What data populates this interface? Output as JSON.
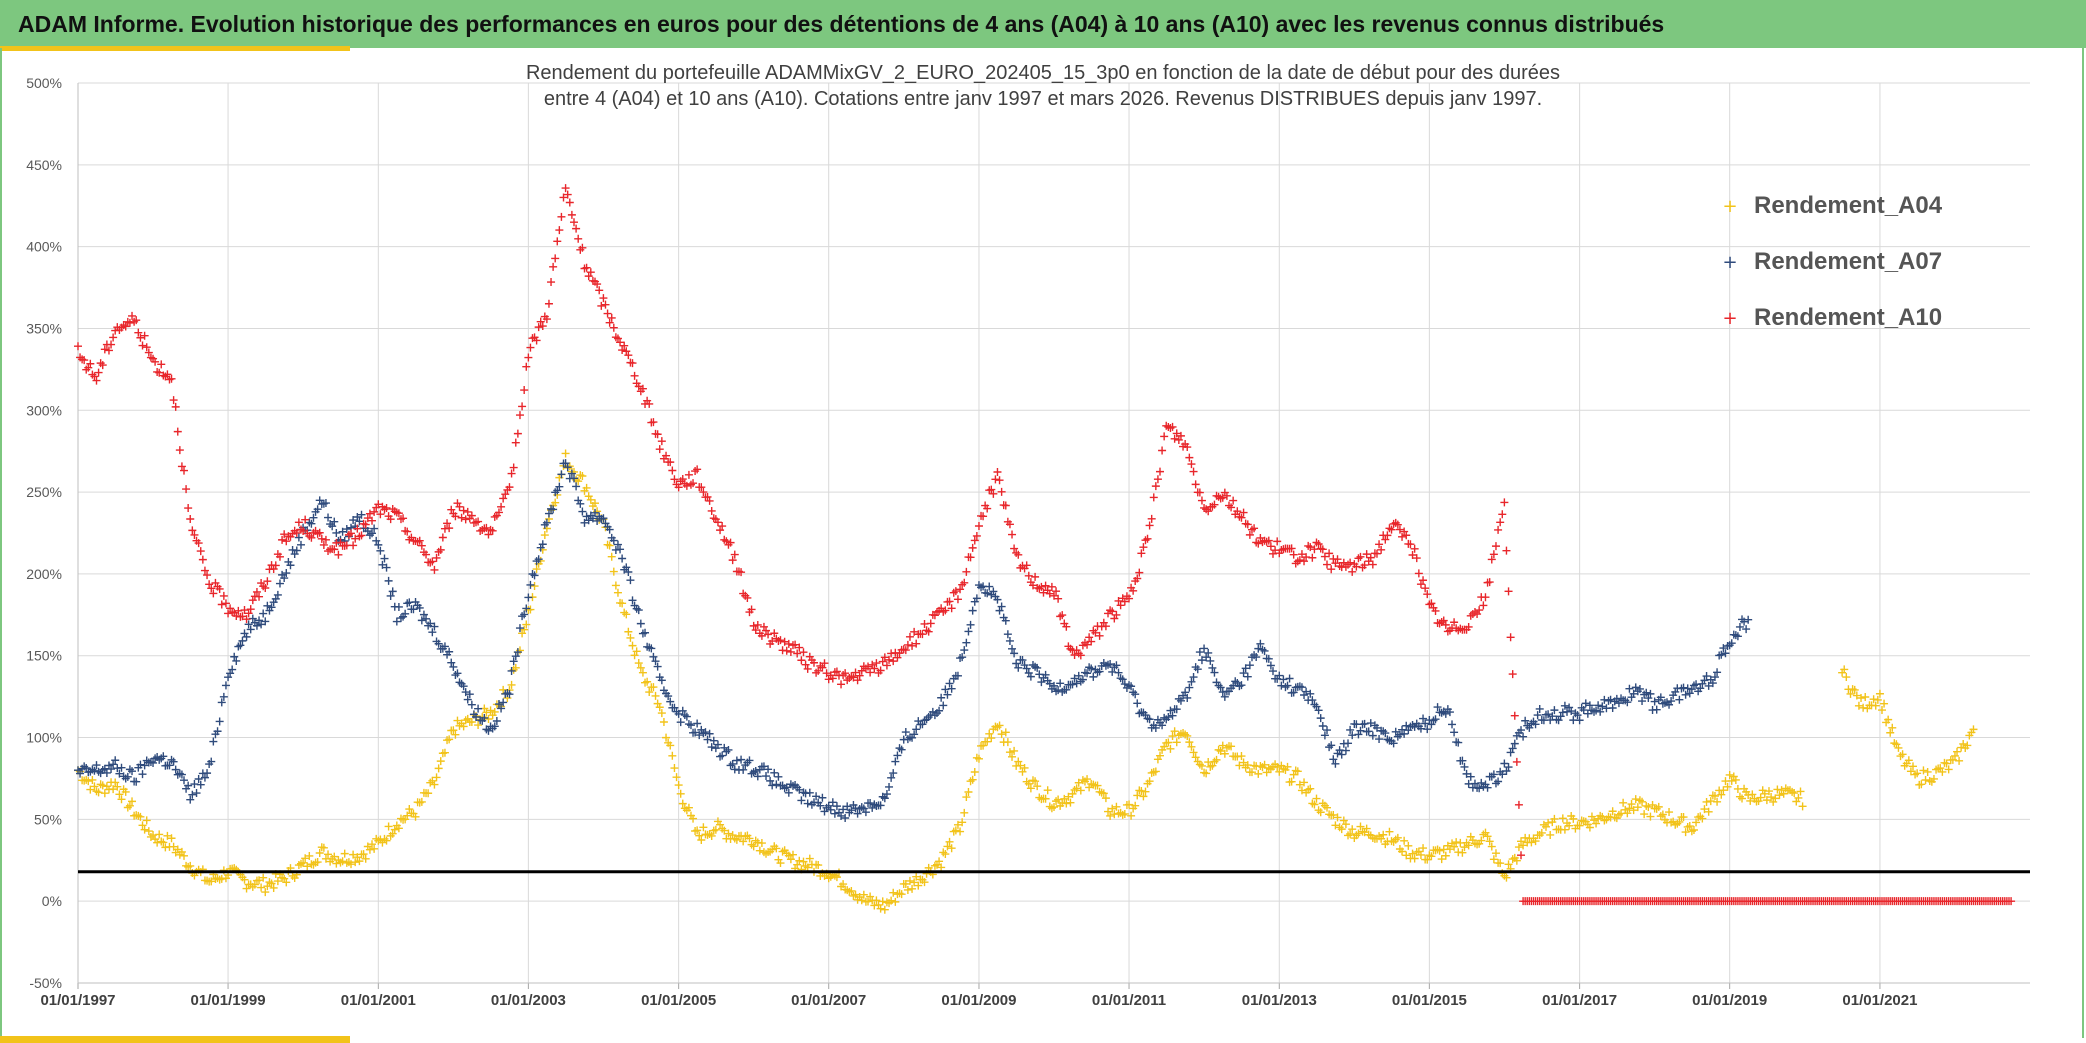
{
  "header": {
    "title": "ADAM Informe. Evolution historique des performances en euros pour des détentions de 4 ans (A04) à 10 ans (A10) avec les revenus connus distribués"
  },
  "chart_data": {
    "type": "scatter",
    "title": "Rendement du portefeuille ADAMMixGV_2_EURO_202405_15_3p0  en fonction de la date de début pour des durées",
    "subtitle": "entre 4 (A04) et 10 ans (A10). Cotations entre janv 1997 et mars 2026. Revenus DISTRIBUES depuis janv 1997.",
    "xlabel": "",
    "ylabel": "",
    "x_ticks": [
      "01/01/1997",
      "01/01/1999",
      "01/01/2001",
      "01/01/2003",
      "01/01/2005",
      "01/01/2007",
      "01/01/2009",
      "01/01/2011",
      "01/01/2013",
      "01/01/2015",
      "01/01/2017",
      "01/01/2019",
      "01/01/2021"
    ],
    "y_ticks": [
      "-50%",
      "0%",
      "50%",
      "100%",
      "150%",
      "200%",
      "250%",
      "300%",
      "350%",
      "400%",
      "450%",
      "500%"
    ],
    "xlim": [
      "01/01/1997",
      "01/01/2023"
    ],
    "ylim": [
      -0.5,
      5.0
    ],
    "y_format": "percent",
    "grid": true,
    "legend_position": "top-right",
    "reference_line": 0.18,
    "reference_line_color": "#000000",
    "series": [
      {
        "name": "Rendement_A04",
        "color": "#f2c31a",
        "x": [
          "1997-01-01",
          "1997-04-01",
          "1997-07-01",
          "1997-10-01",
          "1998-01-01",
          "1998-04-01",
          "1998-07-01",
          "1998-10-01",
          "1999-01-01",
          "1999-04-01",
          "1999-07-01",
          "1999-10-01",
          "2000-01-01",
          "2000-04-01",
          "2000-07-01",
          "2000-10-01",
          "2001-01-01",
          "2001-04-01",
          "2001-07-01",
          "2001-10-01",
          "2002-01-01",
          "2002-04-01",
          "2002-07-01",
          "2002-10-01",
          "2003-01-01",
          "2003-04-01",
          "2003-07-01",
          "2003-10-01",
          "2004-01-01",
          "2004-04-01",
          "2004-07-01",
          "2004-10-01",
          "2005-01-01",
          "2005-04-01",
          "2005-07-01",
          "2005-10-01",
          "2006-01-01",
          "2006-04-01",
          "2006-07-01",
          "2006-10-01",
          "2007-01-01",
          "2007-04-01",
          "2007-07-01",
          "2007-10-01",
          "2008-01-01",
          "2008-04-01",
          "2008-07-01",
          "2008-10-01",
          "2009-01-01",
          "2009-04-01",
          "2009-07-01",
          "2009-10-01",
          "2010-01-01",
          "2010-04-01",
          "2010-07-01",
          "2010-10-01",
          "2011-01-01",
          "2011-04-01",
          "2011-07-01",
          "2011-10-01",
          "2012-01-01",
          "2012-04-01",
          "2012-07-01",
          "2012-10-01",
          "2013-01-01",
          "2013-04-01",
          "2013-07-01",
          "2013-10-01",
          "2014-01-01",
          "2014-04-01",
          "2014-07-01",
          "2014-10-01",
          "2015-01-01",
          "2015-04-01",
          "2015-07-01",
          "2015-10-01",
          "2016-01-01",
          "2016-04-01",
          "2016-07-01",
          "2016-10-01",
          "2017-01-01",
          "2017-04-01",
          "2017-07-01",
          "2017-10-01",
          "2018-01-01",
          "2018-04-01",
          "2018-07-01",
          "2018-10-01",
          "2019-01-01",
          "2019-04-01",
          "2019-07-01",
          "2019-10-01",
          "2020-01-01",
          "2020-04-01",
          "2020-07-01",
          "2020-10-01",
          "2021-01-01",
          "2021-04-01",
          "2021-07-01",
          "2021-10-01",
          "2022-01-01",
          "2022-04-01"
        ],
        "values": [
          0.8,
          0.68,
          0.72,
          0.55,
          0.4,
          0.35,
          0.22,
          0.12,
          0.18,
          0.12,
          0.1,
          0.14,
          0.22,
          0.3,
          0.26,
          0.28,
          0.35,
          0.48,
          0.55,
          0.72,
          1.05,
          1.1,
          1.15,
          1.3,
          1.75,
          2.3,
          2.7,
          2.55,
          2.3,
          1.8,
          1.4,
          1.2,
          0.7,
          0.4,
          0.45,
          0.4,
          0.38,
          0.3,
          0.25,
          0.22,
          0.18,
          0.1,
          0.0,
          -0.03,
          0.08,
          0.15,
          0.25,
          0.45,
          0.9,
          1.1,
          0.85,
          0.7,
          0.6,
          0.65,
          0.75,
          0.55,
          0.55,
          0.7,
          0.95,
          1.05,
          0.8,
          0.95,
          0.85,
          0.8,
          0.8,
          0.75,
          0.6,
          0.5,
          0.42,
          0.42,
          0.38,
          0.3,
          0.28,
          0.3,
          0.35,
          0.4,
          0.15,
          0.35,
          0.42,
          0.48,
          0.48,
          0.5,
          0.55,
          0.58,
          0.55,
          0.5,
          0.45,
          0.6,
          0.75,
          0.62,
          0.65,
          0.65,
          0.62,
          null,
          1.4,
          1.2,
          1.25,
          0.9,
          0.75,
          0.78,
          0.85,
          1.05
        ]
      },
      {
        "name": "Rendement_A07",
        "color": "#2f4b7c",
        "x": [
          "1997-01-01",
          "1997-04-01",
          "1997-07-01",
          "1997-10-01",
          "1998-01-01",
          "1998-04-01",
          "1998-07-01",
          "1998-10-01",
          "1999-01-01",
          "1999-04-01",
          "1999-07-01",
          "1999-10-01",
          "2000-01-01",
          "2000-04-01",
          "2000-07-01",
          "2000-10-01",
          "2001-01-01",
          "2001-04-01",
          "2001-07-01",
          "2001-10-01",
          "2002-01-01",
          "2002-04-01",
          "2002-07-01",
          "2002-10-01",
          "2003-01-01",
          "2003-04-01",
          "2003-07-01",
          "2003-10-01",
          "2004-01-01",
          "2004-04-01",
          "2004-07-01",
          "2004-10-01",
          "2005-01-01",
          "2005-04-01",
          "2005-07-01",
          "2005-10-01",
          "2006-01-01",
          "2006-04-01",
          "2006-07-01",
          "2006-10-01",
          "2007-01-01",
          "2007-04-01",
          "2007-07-01",
          "2007-10-01",
          "2008-01-01",
          "2008-04-01",
          "2008-07-01",
          "2008-10-01",
          "2009-01-01",
          "2009-04-01",
          "2009-07-01",
          "2009-10-01",
          "2010-01-01",
          "2010-04-01",
          "2010-07-01",
          "2010-10-01",
          "2011-01-01",
          "2011-04-01",
          "2011-07-01",
          "2011-10-01",
          "2012-01-01",
          "2012-04-01",
          "2012-07-01",
          "2012-10-01",
          "2013-01-01",
          "2013-04-01",
          "2013-07-01",
          "2013-10-01",
          "2014-01-01",
          "2014-04-01",
          "2014-07-01",
          "2014-10-01",
          "2015-01-01",
          "2015-04-01",
          "2015-07-01",
          "2015-10-01",
          "2016-01-01",
          "2016-04-01",
          "2016-07-01",
          "2016-10-01",
          "2017-01-01",
          "2017-04-01",
          "2017-07-01",
          "2017-10-01",
          "2018-01-01",
          "2018-04-01",
          "2018-07-01",
          "2018-10-01",
          "2019-01-01",
          "2019-04-01"
        ],
        "values": [
          0.78,
          0.8,
          0.82,
          0.75,
          0.88,
          0.85,
          0.65,
          0.8,
          1.4,
          1.65,
          1.75,
          2.0,
          2.25,
          2.45,
          2.2,
          2.35,
          2.2,
          1.75,
          1.8,
          1.65,
          1.45,
          1.2,
          1.05,
          1.3,
          1.9,
          2.3,
          2.7,
          2.35,
          2.35,
          2.1,
          1.7,
          1.35,
          1.15,
          1.05,
          0.95,
          0.85,
          0.82,
          0.75,
          0.68,
          0.62,
          0.58,
          0.55,
          0.58,
          0.62,
          0.98,
          1.1,
          1.2,
          1.45,
          1.95,
          1.85,
          1.45,
          1.4,
          1.3,
          1.35,
          1.4,
          1.45,
          1.3,
          1.1,
          1.1,
          1.25,
          1.55,
          1.25,
          1.35,
          1.55,
          1.35,
          1.3,
          1.2,
          0.85,
          1.05,
          1.05,
          1.0,
          1.05,
          1.1,
          1.2,
          0.75,
          0.7,
          0.8,
          1.05,
          1.15,
          1.15,
          1.15,
          1.2,
          1.2,
          1.3,
          1.2,
          1.25,
          1.3,
          1.35,
          1.6,
          1.72
        ]
      },
      {
        "name": "Rendement_A10",
        "color": "#e8262b",
        "x": [
          "1997-01-01",
          "1997-04-01",
          "1997-07-01",
          "1997-10-01",
          "1998-01-01",
          "1998-04-01",
          "1998-07-01",
          "1998-10-01",
          "1999-01-01",
          "1999-04-01",
          "1999-07-01",
          "1999-10-01",
          "2000-01-01",
          "2000-04-01",
          "2000-07-01",
          "2000-10-01",
          "2001-01-01",
          "2001-04-01",
          "2001-07-01",
          "2001-10-01",
          "2002-01-01",
          "2002-04-01",
          "2002-07-01",
          "2002-10-01",
          "2003-01-01",
          "2003-04-01",
          "2003-07-01",
          "2003-10-01",
          "2004-01-01",
          "2004-04-01",
          "2004-07-01",
          "2004-10-01",
          "2005-01-01",
          "2005-04-01",
          "2005-07-01",
          "2005-10-01",
          "2006-01-01",
          "2006-04-01",
          "2006-07-01",
          "2006-10-01",
          "2007-01-01",
          "2007-04-01",
          "2007-07-01",
          "2007-10-01",
          "2008-01-01",
          "2008-04-01",
          "2008-07-01",
          "2008-10-01",
          "2009-01-01",
          "2009-04-01",
          "2009-07-01",
          "2009-10-01",
          "2010-01-01",
          "2010-04-01",
          "2010-07-01",
          "2010-10-01",
          "2011-01-01",
          "2011-04-01",
          "2011-07-01",
          "2011-10-01",
          "2012-01-01",
          "2012-04-01",
          "2012-07-01",
          "2012-10-01",
          "2013-01-01",
          "2013-04-01",
          "2013-07-01",
          "2013-10-01",
          "2014-01-01",
          "2014-04-01",
          "2014-07-01",
          "2014-10-01",
          "2015-01-01",
          "2015-04-01",
          "2015-07-01",
          "2015-10-01",
          "2016-01-01",
          "2016-04-01",
          "2016-07-01",
          "2016-10-01",
          "2017-01-01",
          "2017-04-01",
          "2017-07-01",
          "2017-10-01",
          "2018-01-01",
          "2018-04-01",
          "2018-07-01",
          "2018-10-01",
          "2019-01-01",
          "2019-04-01",
          "2019-07-01",
          "2019-10-01",
          "2020-01-01",
          "2020-04-01",
          "2020-07-01",
          "2020-10-01",
          "2021-01-01",
          "2021-04-01",
          "2021-07-01",
          "2021-10-01",
          "2022-01-01",
          "2022-04-01",
          "2022-07-01",
          "2022-10-01"
        ],
        "values": [
          3.35,
          3.2,
          3.5,
          3.55,
          3.3,
          3.2,
          2.3,
          1.95,
          1.8,
          1.75,
          1.95,
          2.2,
          2.3,
          2.2,
          2.15,
          2.25,
          2.4,
          2.35,
          2.2,
          2.05,
          2.4,
          2.35,
          2.25,
          2.5,
          3.35,
          3.6,
          4.35,
          3.9,
          3.65,
          3.4,
          3.15,
          2.8,
          2.55,
          2.6,
          2.35,
          2.1,
          1.7,
          1.6,
          1.55,
          1.45,
          1.4,
          1.35,
          1.4,
          1.45,
          1.55,
          1.65,
          1.75,
          1.9,
          2.3,
          2.6,
          2.1,
          1.95,
          1.9,
          1.5,
          1.6,
          1.75,
          1.85,
          2.2,
          2.9,
          2.8,
          2.4,
          2.5,
          2.35,
          2.2,
          2.15,
          2.1,
          2.15,
          2.05,
          2.05,
          2.1,
          2.3,
          2.2,
          1.8,
          1.65,
          1.7,
          1.85,
          2.45,
          0.0,
          0.0,
          0.0,
          0.0,
          0.0,
          0.0,
          0.0,
          0.0,
          0.0,
          0.0,
          0.0,
          0.0,
          0.0,
          0.0,
          0.0,
          0.0,
          0.0,
          0.0,
          0.0,
          0.0,
          0.0,
          0.0,
          0.0,
          0.0,
          0.0,
          0.0,
          0.0
        ]
      }
    ]
  }
}
